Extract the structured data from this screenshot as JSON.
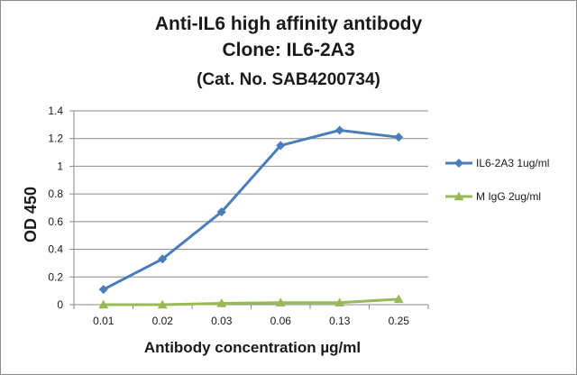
{
  "chart_data": {
    "type": "line",
    "title_lines": [
      "Anti-IL6 high affinity antibody",
      "Clone: IL6-2A3",
      "(Cat. No. SAB4200734)"
    ],
    "xlabel": "Antibody concentration µg/ml",
    "ylabel": "OD 450",
    "categories": [
      "0.01",
      "0.02",
      "0.03",
      "0.06",
      "0.13",
      "0.25"
    ],
    "ylim": [
      0,
      1.4
    ],
    "yticks": [
      "0",
      "0.2",
      "0.4",
      "0.6",
      "0.8",
      "1",
      "1.2",
      "1.4"
    ],
    "grid": "horizontal",
    "legend_position": "right",
    "series": [
      {
        "name": "IL6-2A3 1ug/ml",
        "color": "#4a7ebb",
        "marker": "diamond",
        "values": [
          0.11,
          0.33,
          0.67,
          1.15,
          1.26,
          1.21
        ]
      },
      {
        "name": "M IgG 2ug/ml",
        "color": "#98b954",
        "marker": "triangle",
        "values": [
          0.0,
          0.0,
          0.01,
          0.015,
          0.015,
          0.04
        ]
      }
    ]
  }
}
